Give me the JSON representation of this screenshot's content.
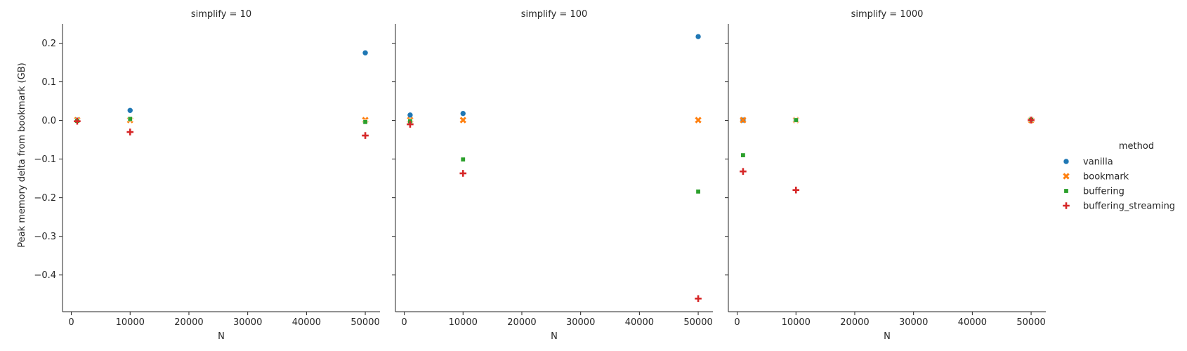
{
  "chart_data": {
    "type": "scatter",
    "ylabel": "Peak memory delta from bookmark (GB)",
    "xlabel": "N",
    "xlim": [
      -1500,
      52500
    ],
    "ylim": [
      -0.495,
      0.25
    ],
    "xticks": [
      0,
      10000,
      20000,
      30000,
      40000,
      50000
    ],
    "yticks": [
      0.2,
      0.1,
      0.0,
      -0.1,
      -0.2,
      -0.3,
      -0.4
    ],
    "ytick_labels": [
      "0.2",
      "0.1",
      "0.0",
      "−0.1",
      "−0.2",
      "−0.3",
      "−0.4"
    ],
    "legend": {
      "title": "method",
      "placement": "right",
      "entries": [
        {
          "name": "vanilla",
          "color": "#1f77b4",
          "marker": "circle"
        },
        {
          "name": "bookmark",
          "color": "#ff7f0e",
          "marker": "x"
        },
        {
          "name": "buffering",
          "color": "#2ca02c",
          "marker": "square"
        },
        {
          "name": "buffering_streaming",
          "color": "#d62728",
          "marker": "plus"
        }
      ]
    },
    "panels": [
      {
        "title": "simplify = 10",
        "series": [
          {
            "name": "vanilla",
            "x": [
              1000,
              10000,
              50000
            ],
            "y": [
              0.001,
              0.026,
              0.175
            ]
          },
          {
            "name": "bookmark",
            "x": [
              1000,
              10000,
              50000
            ],
            "y": [
              0.001,
              0.001,
              0.001
            ]
          },
          {
            "name": "buffering",
            "x": [
              1000,
              10000,
              50000
            ],
            "y": [
              -0.001,
              0.004,
              -0.004
            ]
          },
          {
            "name": "buffering_streaming",
            "x": [
              1000,
              10000,
              50000
            ],
            "y": [
              -0.002,
              -0.03,
              -0.039
            ]
          }
        ]
      },
      {
        "title": "simplify = 100",
        "series": [
          {
            "name": "vanilla",
            "x": [
              1000,
              10000,
              50000
            ],
            "y": [
              0.014,
              0.018,
              0.217
            ]
          },
          {
            "name": "bookmark",
            "x": [
              1000,
              10000,
              50000
            ],
            "y": [
              0.001,
              0.001,
              0.001
            ]
          },
          {
            "name": "buffering",
            "x": [
              1000,
              10000,
              50000
            ],
            "y": [
              -0.002,
              -0.101,
              -0.184
            ]
          },
          {
            "name": "buffering_streaming",
            "x": [
              1000,
              10000,
              50000
            ],
            "y": [
              -0.01,
              -0.137,
              -0.461
            ]
          }
        ]
      },
      {
        "title": "simplify = 1000",
        "series": [
          {
            "name": "vanilla",
            "x": [
              1000,
              10000,
              50000
            ],
            "y": [
              0.001,
              0.001,
              0.002
            ]
          },
          {
            "name": "bookmark",
            "x": [
              1000,
              10000,
              50000
            ],
            "y": [
              0.001,
              0.001,
              0.001
            ]
          },
          {
            "name": "buffering",
            "x": [
              1000,
              10000,
              50000
            ],
            "y": [
              -0.09,
              0.001,
              0.002
            ]
          },
          {
            "name": "buffering_streaming",
            "x": [
              1000,
              10000,
              50000
            ],
            "y": [
              -0.132,
              -0.18,
              0.001
            ]
          }
        ]
      }
    ]
  }
}
